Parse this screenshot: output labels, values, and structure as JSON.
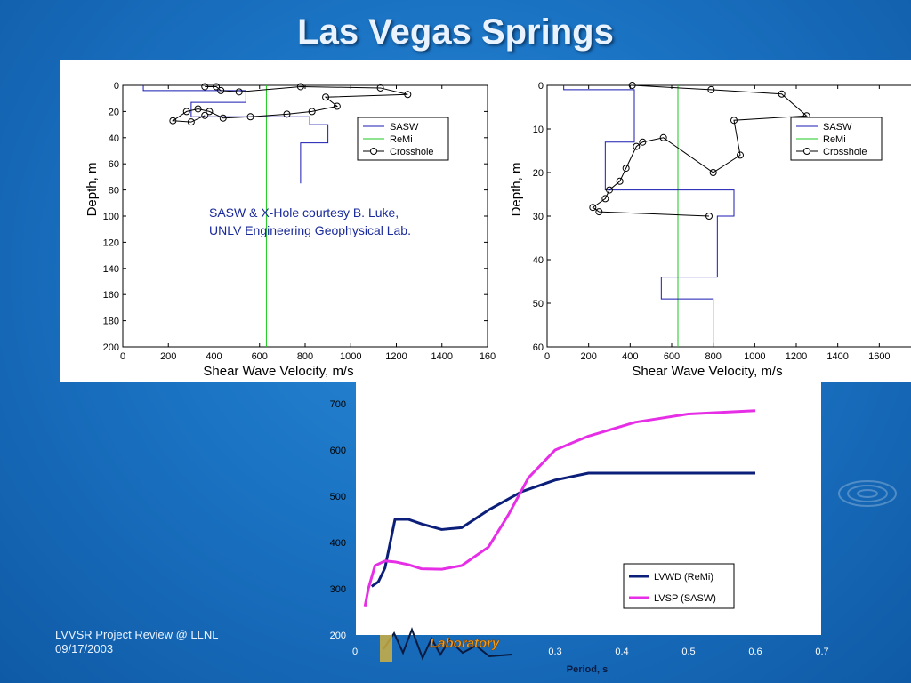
{
  "slide": {
    "title": "Las Vegas Springs",
    "footer_line1": "LVVSR Project Review @ LLNL",
    "footer_line2": "09/17/2003",
    "logo_text": "Laboratory"
  },
  "colors": {
    "sasw": "#1a1ab0",
    "remi": "#1ec81e",
    "crosshole": "#000000",
    "lvwd": "#0b1f7a",
    "lvsp": "#e62ee6"
  },
  "chart_data": [
    {
      "type": "line",
      "xlabel": "Shear Wave Velocity, m/s",
      "ylabel": "Depth, m",
      "xlim": [
        0,
        1600
      ],
      "ylim": [
        200,
        0
      ],
      "xticks": [
        "0",
        "200",
        "400",
        "600",
        "800",
        "1000",
        "1200",
        "1400",
        "160"
      ],
      "yticks": [
        "0",
        "20",
        "40",
        "60",
        "80",
        "100",
        "120",
        "140",
        "160",
        "180",
        "200"
      ],
      "legend": [
        "SASW",
        "ReMi",
        "Crosshole"
      ],
      "legend_placement": "top-right",
      "annotation_line1": "SASW & X-Hole courtesy B. Luke,",
      "annotation_line2": "UNLV Engineering Geophysical Lab.",
      "series": [
        {
          "name": "ReMi",
          "x": [
            630,
            630,
            630
          ],
          "y": [
            0,
            24,
            200
          ]
        },
        {
          "name": "SASW",
          "x": [
            90,
            90,
            540,
            540,
            300,
            300,
            820,
            820,
            900,
            900,
            780,
            780
          ],
          "y": [
            0,
            4,
            4,
            13,
            13,
            24,
            24,
            30,
            30,
            44,
            44,
            75
          ]
        },
        {
          "name": "Crosshole",
          "x": [
            360,
            410,
            430,
            510,
            780,
            1130,
            1250,
            890,
            940,
            830,
            720,
            560,
            440,
            380,
            330,
            280,
            220,
            300,
            360
          ],
          "y": [
            1,
            1,
            4,
            5,
            1,
            2,
            7,
            9,
            16,
            20,
            22,
            24,
            25,
            20,
            18,
            20,
            27,
            28,
            23
          ]
        }
      ]
    },
    {
      "type": "line",
      "xlabel": "Shear Wave Velocity, m/s",
      "ylabel": "Depth, m",
      "xlim": [
        0,
        1800
      ],
      "ylim": [
        60,
        0
      ],
      "xticks": [
        "0",
        "200",
        "400",
        "600",
        "800",
        "1000",
        "1200",
        "1400",
        "1600",
        "18"
      ],
      "yticks": [
        "0",
        "10",
        "20",
        "30",
        "40",
        "50",
        "60"
      ],
      "legend": [
        "SASW",
        "ReMi",
        "Crosshole"
      ],
      "legend_placement": "top-right",
      "series": [
        {
          "name": "ReMi",
          "x": [
            630,
            630,
            630
          ],
          "y": [
            0,
            10,
            60
          ]
        },
        {
          "name": "SASW",
          "x": [
            80,
            80,
            420,
            420,
            280,
            280,
            900,
            900,
            820,
            820,
            550,
            550,
            800,
            800
          ],
          "y": [
            0,
            1,
            1,
            13,
            13,
            24,
            24,
            30,
            30,
            44,
            44,
            49,
            49,
            60
          ]
        },
        {
          "name": "Crosshole",
          "x": [
            410,
            790,
            1130,
            1250,
            900,
            930,
            800,
            560,
            460,
            430,
            380,
            350,
            300,
            280,
            220,
            250,
            780
          ],
          "y": [
            0,
            1,
            2,
            7,
            8,
            16,
            20,
            12,
            13,
            14,
            19,
            22,
            24,
            26,
            28,
            29,
            30
          ]
        }
      ]
    },
    {
      "type": "line",
      "xlabel": "Period, s",
      "ylabel": "",
      "xlim": [
        0,
        0.7
      ],
      "ylim": [
        200,
        700
      ],
      "xticks": [
        "0",
        "0.3",
        "0.4",
        "0.5",
        "0.6",
        "0.7"
      ],
      "yticks": [
        "200",
        "300",
        "400",
        "500",
        "600",
        "700"
      ],
      "legend_placement": "bottom-right",
      "series": [
        {
          "name": "LVWD (ReMi)",
          "x": [
            0.025,
            0.035,
            0.045,
            0.06,
            0.08,
            0.1,
            0.13,
            0.16,
            0.2,
            0.25,
            0.3,
            0.35,
            0.37,
            0.45,
            0.52,
            0.6
          ],
          "y": [
            305,
            315,
            345,
            450,
            450,
            440,
            428,
            432,
            470,
            510,
            535,
            550,
            550,
            550,
            550,
            550
          ]
        },
        {
          "name": "LVSP (SASW)",
          "x": [
            0.015,
            0.02,
            0.03,
            0.045,
            0.06,
            0.08,
            0.1,
            0.13,
            0.16,
            0.2,
            0.23,
            0.26,
            0.3,
            0.35,
            0.42,
            0.5,
            0.6
          ],
          "y": [
            262,
            300,
            350,
            360,
            358,
            352,
            343,
            342,
            350,
            390,
            460,
            540,
            600,
            630,
            660,
            678,
            685
          ]
        }
      ]
    }
  ]
}
